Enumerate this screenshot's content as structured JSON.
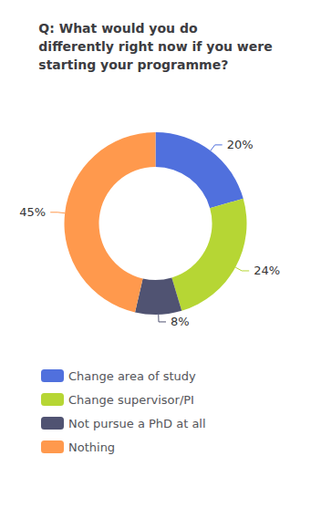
{
  "chart_data": {
    "type": "pie",
    "title": "Q: What would you do\ndifferently right now if you were\nstarting your programme?",
    "categories": [
      "Change area of study",
      "Change supervisor/PI",
      "Not pursue a PhD at all",
      "Nothing"
    ],
    "values": [
      20,
      24,
      8,
      45
    ],
    "value_labels": [
      "20%",
      "24%",
      "8%",
      "45%"
    ],
    "data_labels": true,
    "legend": "bottom"
  }
}
